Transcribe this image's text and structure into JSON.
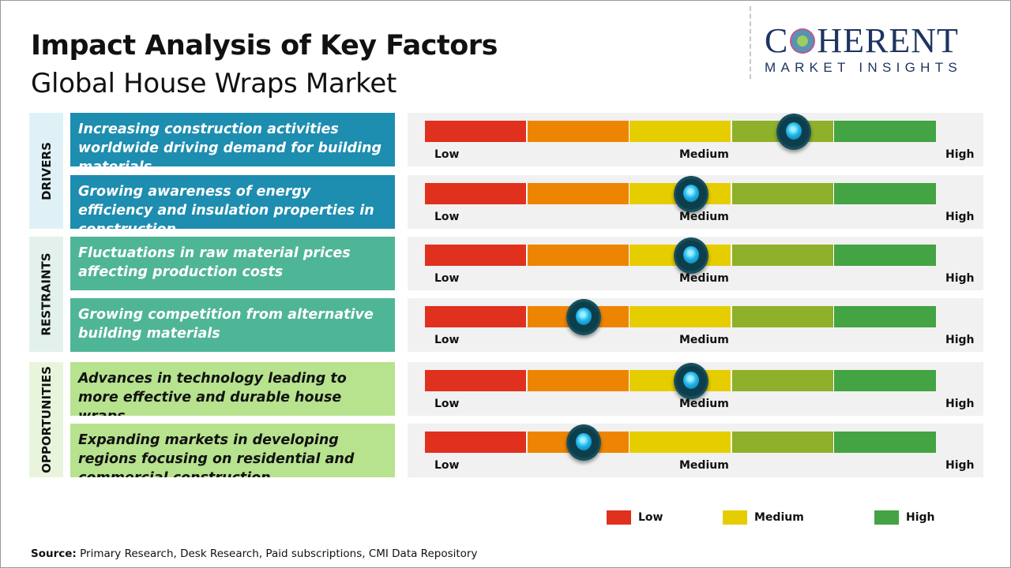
{
  "header": {
    "title": "Impact Analysis of Key Factors",
    "subtitle": "Global House Wraps Market"
  },
  "logo": {
    "main_left": "C",
    "main_right": "HERENT",
    "sub": "MARKET INSIGHTS"
  },
  "scale_labels": {
    "low": "Low",
    "medium": "Medium",
    "high": "High"
  },
  "segment_colors": [
    "#e0301e",
    "#ee8502",
    "#e6cd00",
    "#8fb02a",
    "#44a342"
  ],
  "categories": [
    {
      "label": "DRIVERS",
      "bg": "#dff1f7",
      "box_color": "#1d8db0",
      "text_color": "#ffffff",
      "rows": [
        0,
        1
      ]
    },
    {
      "label": "RESTRAINTS",
      "bg": "#e2f1ec",
      "box_color": "#4fb597",
      "text_color": "#ffffff",
      "rows": [
        2,
        3
      ]
    },
    {
      "label": "OPPORTUNITIES",
      "bg": "#e8f5dc",
      "box_color": "#b7e28e",
      "text_color": "#111111",
      "rows": [
        4,
        5
      ]
    }
  ],
  "factors": [
    {
      "text": "Increasing construction activities worldwide driving demand for building materials",
      "impact": 0.72
    },
    {
      "text": "Growing awareness of energy efficiency and insulation properties in construction",
      "impact": 0.52
    },
    {
      "text": "Fluctuations in raw material prices affecting production costs",
      "impact": 0.52
    },
    {
      "text": "Growing competition from alternative building materials",
      "impact": 0.31
    },
    {
      "text": "Advances in technology leading to more effective and durable house wraps",
      "impact": 0.52
    },
    {
      "text": "Expanding markets in developing regions focusing on residential and commercial construction",
      "impact": 0.31
    }
  ],
  "legend": [
    {
      "label": "Low",
      "color": "#e0301e"
    },
    {
      "label": "Medium",
      "color": "#e6cd00"
    },
    {
      "label": "High",
      "color": "#44a342"
    }
  ],
  "source": {
    "label": "Source:",
    "text": " Primary Research, Desk Research, Paid subscriptions, CMI Data Repository"
  }
}
